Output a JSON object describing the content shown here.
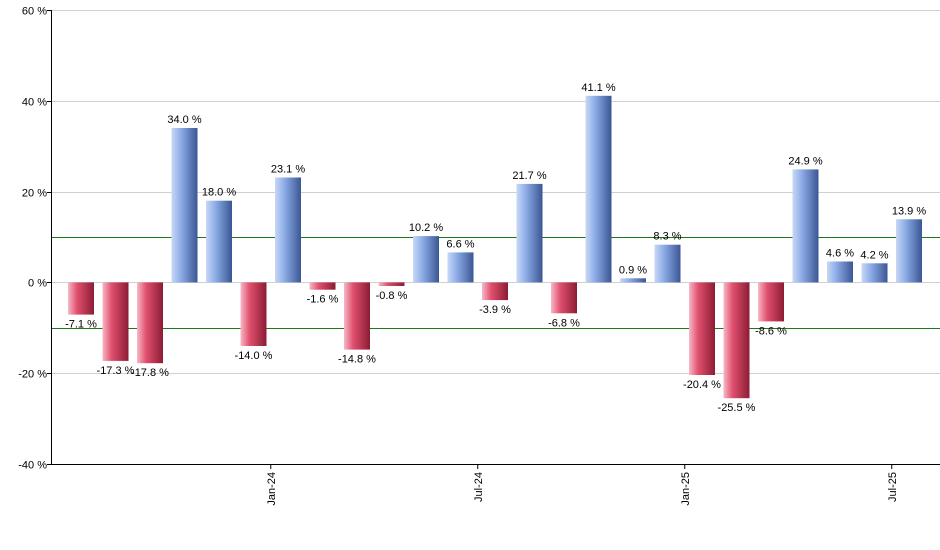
{
  "chart_data": {
    "type": "bar",
    "ylim": [
      -40,
      60
    ],
    "yticks": [
      -40,
      -20,
      0,
      20,
      40,
      60
    ],
    "ytick_labels": [
      "-40 %",
      "-20 %",
      "0 %",
      "20 %",
      "40 %",
      "60 %"
    ],
    "xtick_labels": [
      {
        "label": "Jan-24",
        "after_index": 5
      },
      {
        "label": "Jul-24",
        "after_index": 11
      },
      {
        "label": "Jan-25",
        "after_index": 17
      },
      {
        "label": "Jul-25",
        "after_index": 23
      }
    ],
    "reference_lines": [
      10,
      -10
    ],
    "values": [
      -7.1,
      -17.3,
      -17.8,
      34.0,
      18.0,
      -14.0,
      23.1,
      -1.6,
      -14.8,
      -0.8,
      10.2,
      6.6,
      -3.9,
      21.7,
      -6.8,
      41.1,
      0.9,
      8.3,
      -20.4,
      -25.5,
      -8.6,
      24.9,
      4.6,
      4.2,
      13.9
    ],
    "labels": [
      "-7.1 %",
      "-17.3 %",
      "-17.8 %",
      "34.0 %",
      "18.0 %",
      "-14.0 %",
      "23.1 %",
      "-1.6 %",
      "-14.8 %",
      "-0.8 %",
      "10.2 %",
      "6.6 %",
      "-3.9 %",
      "21.7 %",
      "-6.8 %",
      "41.1 %",
      "0.9 %",
      "8.3 %",
      "-20.4 %",
      "-25.5 %",
      "-8.6 %",
      "24.9 %",
      "4.6 %",
      "4.2 %",
      "13.9 %"
    ],
    "colors": {
      "positive": "#7f9fe0",
      "positive_dark": "#3a5694",
      "negative": "#e0506e",
      "negative_dark": "#8c1c34",
      "reference": "#1a7a1a",
      "grid": "#d0d0d0"
    },
    "grid": true
  }
}
